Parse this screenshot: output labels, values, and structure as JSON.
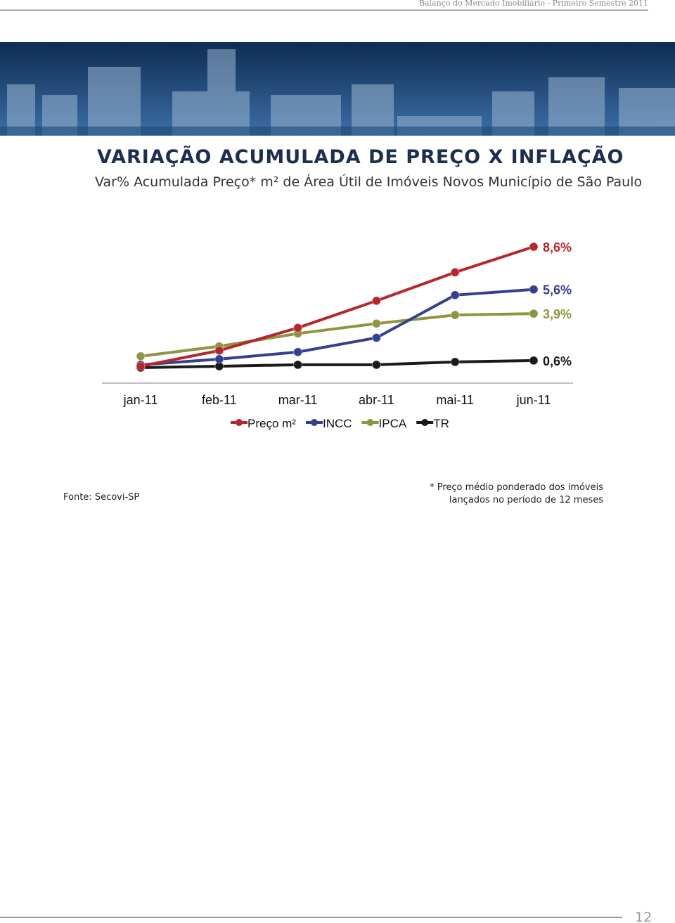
{
  "header": {
    "running_title": "Balanço do Mercado Imobiliário - Primeiro Semestre 2011"
  },
  "chart_data": {
    "type": "line",
    "title": "VARIAÇÃO ACUMULADA DE PREÇO X INFLAÇÃO",
    "subtitle": "Var% Acumulada Preço* m² de Área Útil de Imóveis Novos Município de São Paulo",
    "categories": [
      "jan-11",
      "feb-11",
      "mar-11",
      "abr-11",
      "mai-11",
      "jun-11"
    ],
    "series": [
      {
        "name": "Preço m²",
        "color": "#b5272d",
        "values": [
          0.2,
          1.3,
          2.9,
          4.8,
          6.8,
          8.6
        ],
        "value_labels": [
          null,
          null,
          null,
          null,
          null,
          "8,6%"
        ]
      },
      {
        "name": "INCC",
        "color": "#333f8f",
        "values": [
          0.3,
          0.7,
          1.2,
          2.2,
          5.2,
          5.6
        ],
        "value_labels": [
          null,
          null,
          null,
          null,
          null,
          "5,6%"
        ]
      },
      {
        "name": "IPCA",
        "color": "#8e9440",
        "values": [
          0.9,
          1.6,
          2.5,
          3.2,
          3.8,
          3.9
        ],
        "value_labels": [
          null,
          null,
          null,
          null,
          null,
          "3,9%"
        ]
      },
      {
        "name": "TR",
        "color": "#1a1a1a",
        "values": [
          0.1,
          0.2,
          0.3,
          0.3,
          0.5,
          0.6
        ],
        "value_labels": [
          null,
          null,
          null,
          null,
          null,
          "0,6%"
        ]
      }
    ],
    "legend": "bottom"
  },
  "footer": {
    "source": "Fonte: Secovi-SP",
    "note": [
      "* Preço médio ponderado dos imóveis",
      "lançados no período de 12 meses"
    ],
    "page_number": "12"
  }
}
